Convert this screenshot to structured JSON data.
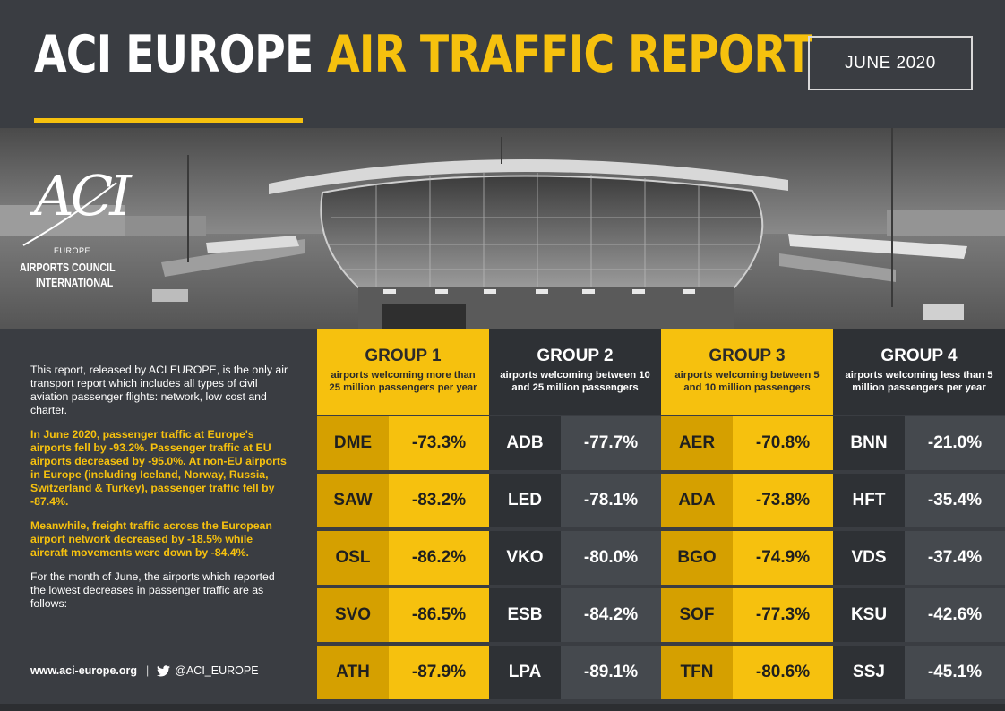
{
  "header": {
    "title_white": "ACI EUROPE",
    "title_yellow": "AIR TRAFFIC REPORT",
    "date": "JUNE 2020"
  },
  "logo": {
    "mark": "ACI",
    "region": "EUROPE",
    "line1": "AIRPORTS COUNCIL",
    "line2": "INTERNATIONAL"
  },
  "intro": {
    "p1": "This report, released by ACI EUROPE, is the only air transport report which includes all types of civil aviation passenger flights: network, low cost and charter.",
    "p2": "In June 2020, passenger traffic at Europe's airports fell by -93.2%. Passenger traffic at EU airports decreased by -95.0%. At non-EU airports in Europe (including Iceland, Norway, Russia, Switzerland & Turkey), passenger traffic fell by -87.4%.",
    "p3": "Meanwhile, freight traffic across the European airport network decreased by -18.5% while aircraft movements were down by -84.4%.",
    "p4": "For the month of June, the airports which reported the lowest decreases in passenger traffic are as follows:"
  },
  "footer": {
    "website": "www.aci-europe.org",
    "separator": "|",
    "twitter": "@ACI_EUROPE"
  },
  "groups": [
    {
      "title": "GROUP 1",
      "subtitle": "airports welcoming more than 25 million passengers per year",
      "rows": [
        {
          "code": "DME",
          "change": "-73.3%"
        },
        {
          "code": "SAW",
          "change": "-83.2%"
        },
        {
          "code": "OSL",
          "change": "-86.2%"
        },
        {
          "code": "SVO",
          "change": "-86.5%"
        },
        {
          "code": "ATH",
          "change": "-87.9%"
        }
      ]
    },
    {
      "title": "GROUP 2",
      "subtitle": "airports welcoming between 10 and 25 million passengers",
      "rows": [
        {
          "code": "ADB",
          "change": "-77.7%"
        },
        {
          "code": "LED",
          "change": "-78.1%"
        },
        {
          "code": "VKO",
          "change": "-80.0%"
        },
        {
          "code": "ESB",
          "change": "-84.2%"
        },
        {
          "code": "LPA",
          "change": "-89.1%"
        }
      ]
    },
    {
      "title": "GROUP 3",
      "subtitle": "airports welcoming between 5 and 10 million passengers",
      "rows": [
        {
          "code": "AER",
          "change": "-70.8%"
        },
        {
          "code": "ADA",
          "change": "-73.8%"
        },
        {
          "code": "BGO",
          "change": "-74.9%"
        },
        {
          "code": "SOF",
          "change": "-77.3%"
        },
        {
          "code": "TFN",
          "change": "-80.6%"
        }
      ]
    },
    {
      "title": "GROUP 4",
      "subtitle": "airports welcoming less than 5 million passengers per year",
      "rows": [
        {
          "code": "BNN",
          "change": "-21.0%"
        },
        {
          "code": "HFT",
          "change": "-35.4%"
        },
        {
          "code": "VDS",
          "change": "-37.4%"
        },
        {
          "code": "KSU",
          "change": "-42.6%"
        },
        {
          "code": "SSJ",
          "change": "-45.1%"
        }
      ]
    }
  ],
  "colors": {
    "background": "#3a3d42",
    "accent_yellow": "#f6c10e",
    "dark_yellow": "#d5a000",
    "dark_cell": "#2e3135",
    "mid_cell": "#45494e"
  }
}
